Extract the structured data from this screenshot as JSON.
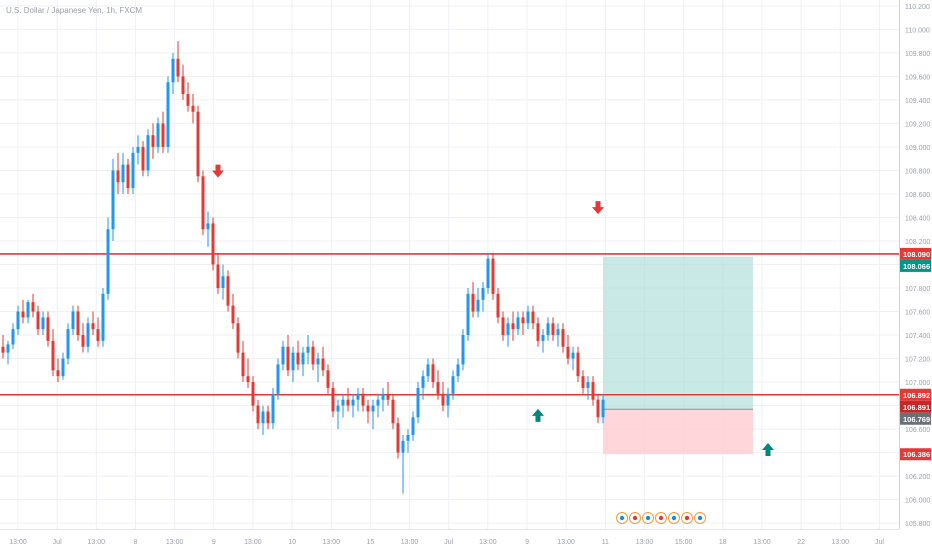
{
  "window": {
    "title": "U.S. Dollar / Japanese Yen, 1h, FXCM"
  },
  "colors": {
    "up": "#2196f3",
    "down": "#e53935",
    "level": "#e53935",
    "target_fill": "#b2dfdb",
    "stop_fill": "#ffcdd2",
    "arrow_up": "#00897b",
    "arrow_down": "#e53935",
    "grid": "#eef0f4",
    "text": "#9aa0ab"
  },
  "chart_data": {
    "type": "candlestick",
    "title": "U.S. Dollar / Japanese Yen, 1h, FXCM",
    "ylim": [
      105.75,
      110.25
    ],
    "grid": true,
    "y_ticks": [
      "110.200",
      "110.000",
      "109.800",
      "109.600",
      "109.400",
      "109.200",
      "109.000",
      "108.800",
      "108.600",
      "108.400",
      "108.200",
      "108.000",
      "107.800",
      "107.600",
      "107.400",
      "107.200",
      "107.000",
      "106.800",
      "106.600",
      "106.400",
      "106.200",
      "106.000",
      "105.800"
    ],
    "x_ticks": [
      "13:00",
      "Jul",
      "13:00",
      "8",
      "13:00",
      "9",
      "13:00",
      "10",
      "13:00",
      "15",
      "13:00",
      "Jul",
      "13:00",
      "9",
      "13:00",
      "11",
      "13:00",
      "15:00",
      "18",
      "13:00",
      "22",
      "13:00",
      "Jul"
    ],
    "horizontal_levels": [
      108.09,
      106.892
    ],
    "price_labels": [
      {
        "text": "108.090",
        "value": 108.09,
        "color": "#e53935"
      },
      {
        "text": "108.066",
        "value": 108.066,
        "color": "#009688"
      },
      {
        "text": "106.892",
        "value": 106.892,
        "color": "#e53935"
      },
      {
        "text": "106.891",
        "value": 106.891,
        "color": "#c62828"
      },
      {
        "text": "106.769",
        "value": 106.769,
        "color": "#6b6f78"
      },
      {
        "text": "106.386",
        "value": 106.386,
        "color": "#e53935"
      }
    ],
    "position": {
      "type": "long",
      "entry": 106.769,
      "target": 108.066,
      "stop": 106.386
    },
    "arrows": [
      {
        "dir": "down",
        "index": 43,
        "value": 108.73
      },
      {
        "dir": "down",
        "index": 119,
        "value": 108.42
      },
      {
        "dir": "up",
        "index": 107,
        "value": 106.78
      },
      {
        "dir": "up",
        "index": 153,
        "value": 106.49
      }
    ],
    "candles": [
      [
        107.3,
        107.4,
        107.2,
        107.25
      ],
      [
        107.25,
        107.35,
        107.15,
        107.32
      ],
      [
        107.32,
        107.5,
        107.28,
        107.45
      ],
      [
        107.45,
        107.65,
        107.4,
        107.6
      ],
      [
        107.6,
        107.7,
        107.5,
        107.55
      ],
      [
        107.55,
        107.7,
        107.5,
        107.68
      ],
      [
        107.68,
        107.75,
        107.55,
        107.6
      ],
      [
        107.6,
        107.65,
        107.4,
        107.45
      ],
      [
        107.45,
        107.6,
        107.4,
        107.55
      ],
      [
        107.55,
        107.6,
        107.3,
        107.35
      ],
      [
        107.35,
        107.45,
        107.05,
        107.1
      ],
      [
        107.1,
        107.2,
        107.0,
        107.05
      ],
      [
        107.05,
        107.25,
        107.02,
        107.2
      ],
      [
        107.2,
        107.5,
        107.15,
        107.45
      ],
      [
        107.45,
        107.65,
        107.4,
        107.6
      ],
      [
        107.6,
        107.65,
        107.35,
        107.4
      ],
      [
        107.4,
        107.5,
        107.25,
        107.3
      ],
      [
        107.3,
        107.55,
        107.25,
        107.5
      ],
      [
        107.5,
        107.6,
        107.4,
        107.45
      ],
      [
        107.45,
        107.55,
        107.3,
        107.35
      ],
      [
        107.35,
        107.8,
        107.3,
        107.75
      ],
      [
        107.75,
        108.4,
        107.7,
        108.3
      ],
      [
        108.3,
        108.9,
        108.2,
        108.8
      ],
      [
        108.8,
        108.95,
        108.6,
        108.7
      ],
      [
        108.7,
        108.95,
        108.6,
        108.85
      ],
      [
        108.85,
        108.9,
        108.6,
        108.65
      ],
      [
        108.65,
        109.0,
        108.6,
        108.95
      ],
      [
        108.95,
        109.1,
        108.85,
        109.0
      ],
      [
        109.0,
        109.05,
        108.75,
        108.8
      ],
      [
        108.8,
        109.15,
        108.75,
        109.1
      ],
      [
        109.1,
        109.2,
        108.9,
        109.0
      ],
      [
        109.0,
        109.25,
        108.95,
        109.2
      ],
      [
        109.2,
        109.3,
        108.95,
        109.0
      ],
      [
        109.0,
        109.6,
        108.95,
        109.55
      ],
      [
        109.55,
        109.8,
        109.45,
        109.75
      ],
      [
        109.75,
        109.9,
        109.55,
        109.6
      ],
      [
        109.6,
        109.7,
        109.4,
        109.45
      ],
      [
        109.45,
        109.55,
        109.3,
        109.35
      ],
      [
        109.35,
        109.45,
        109.2,
        109.3
      ],
      [
        109.3,
        109.35,
        108.7,
        108.75
      ],
      [
        108.75,
        108.8,
        108.25,
        108.3
      ],
      [
        108.3,
        108.45,
        108.15,
        108.35
      ],
      [
        108.35,
        108.4,
        107.95,
        108.0
      ],
      [
        108.0,
        108.1,
        107.75,
        107.8
      ],
      [
        107.8,
        108.0,
        107.7,
        107.9
      ],
      [
        107.9,
        107.95,
        107.6,
        107.65
      ],
      [
        107.65,
        107.75,
        107.45,
        107.5
      ],
      [
        107.5,
        107.55,
        107.2,
        107.25
      ],
      [
        107.25,
        107.35,
        107.0,
        107.05
      ],
      [
        107.05,
        107.2,
        106.95,
        107.0
      ],
      [
        107.0,
        107.05,
        106.75,
        106.8
      ],
      [
        106.8,
        106.85,
        106.6,
        106.65
      ],
      [
        106.65,
        106.8,
        106.55,
        106.75
      ],
      [
        106.75,
        106.8,
        106.6,
        106.65
      ],
      [
        106.65,
        106.95,
        106.6,
        106.9
      ],
      [
        106.9,
        107.2,
        106.85,
        107.15
      ],
      [
        107.15,
        107.35,
        107.1,
        107.3
      ],
      [
        107.3,
        107.4,
        107.05,
        107.1
      ],
      [
        107.1,
        107.3,
        107.0,
        107.25
      ],
      [
        107.25,
        107.35,
        107.1,
        107.15
      ],
      [
        107.15,
        107.3,
        107.05,
        107.25
      ],
      [
        107.25,
        107.4,
        107.15,
        107.3
      ],
      [
        107.3,
        107.35,
        107.1,
        107.15
      ],
      [
        107.15,
        107.25,
        107.0,
        107.2
      ],
      [
        107.2,
        107.3,
        107.05,
        107.1
      ],
      [
        107.1,
        107.15,
        106.9,
        106.95
      ],
      [
        106.95,
        107.0,
        106.7,
        106.75
      ],
      [
        106.75,
        106.85,
        106.6,
        106.8
      ],
      [
        106.8,
        106.9,
        106.7,
        106.85
      ],
      [
        106.85,
        106.95,
        106.75,
        106.8
      ],
      [
        106.8,
        106.9,
        106.7,
        106.85
      ],
      [
        106.85,
        106.95,
        106.75,
        106.9
      ],
      [
        106.9,
        106.95,
        106.75,
        106.8
      ],
      [
        106.8,
        106.85,
        106.65,
        106.75
      ],
      [
        106.75,
        106.85,
        106.6,
        106.8
      ],
      [
        106.8,
        106.9,
        106.7,
        106.85
      ],
      [
        106.85,
        106.95,
        106.75,
        106.9
      ],
      [
        106.9,
        107.0,
        106.8,
        106.85
      ],
      [
        106.85,
        106.9,
        106.6,
        106.65
      ],
      [
        106.65,
        106.7,
        106.35,
        106.4
      ],
      [
        106.4,
        106.55,
        106.05,
        106.5
      ],
      [
        106.5,
        106.6,
        106.4,
        106.55
      ],
      [
        106.55,
        106.75,
        106.5,
        106.7
      ],
      [
        106.7,
        107.0,
        106.65,
        106.95
      ],
      [
        106.95,
        107.1,
        106.85,
        107.05
      ],
      [
        107.05,
        107.2,
        107.0,
        107.15
      ],
      [
        107.15,
        107.2,
        106.95,
        107.0
      ],
      [
        107.0,
        107.1,
        106.85,
        106.9
      ],
      [
        106.9,
        107.0,
        106.75,
        106.8
      ],
      [
        106.8,
        106.95,
        106.7,
        106.9
      ],
      [
        106.9,
        107.1,
        106.85,
        107.05
      ],
      [
        107.05,
        107.2,
        107.0,
        107.15
      ],
      [
        107.15,
        107.45,
        107.1,
        107.4
      ],
      [
        107.4,
        107.8,
        107.35,
        107.75
      ],
      [
        107.75,
        107.85,
        107.55,
        107.6
      ],
      [
        107.6,
        107.8,
        107.55,
        107.7
      ],
      [
        107.7,
        107.85,
        107.6,
        107.8
      ],
      [
        107.8,
        108.1,
        107.75,
        108.05
      ],
      [
        108.05,
        108.1,
        107.7,
        107.75
      ],
      [
        107.75,
        107.8,
        107.5,
        107.55
      ],
      [
        107.55,
        107.6,
        107.35,
        107.4
      ],
      [
        107.4,
        107.55,
        107.3,
        107.5
      ],
      [
        107.5,
        107.6,
        107.35,
        107.45
      ],
      [
        107.45,
        107.6,
        107.4,
        107.55
      ],
      [
        107.55,
        107.6,
        107.4,
        107.5
      ],
      [
        107.5,
        107.65,
        107.45,
        107.6
      ],
      [
        107.6,
        107.65,
        107.45,
        107.5
      ],
      [
        107.5,
        107.55,
        107.3,
        107.35
      ],
      [
        107.35,
        107.45,
        107.25,
        107.4
      ],
      [
        107.4,
        107.55,
        107.35,
        107.5
      ],
      [
        107.5,
        107.55,
        107.35,
        107.4
      ],
      [
        107.4,
        107.5,
        107.3,
        107.45
      ],
      [
        107.45,
        107.5,
        107.25,
        107.3
      ],
      [
        107.3,
        107.4,
        107.15,
        107.2
      ],
      [
        107.2,
        107.3,
        107.1,
        107.25
      ],
      [
        107.25,
        107.3,
        107.0,
        107.05
      ],
      [
        107.05,
        107.1,
        106.9,
        106.95
      ],
      [
        106.95,
        107.05,
        106.85,
        107.0
      ],
      [
        107.0,
        107.05,
        106.8,
        106.85
      ],
      [
        106.85,
        106.9,
        106.65,
        106.7
      ],
      [
        106.7,
        106.9,
        106.65,
        106.85
      ]
    ]
  }
}
